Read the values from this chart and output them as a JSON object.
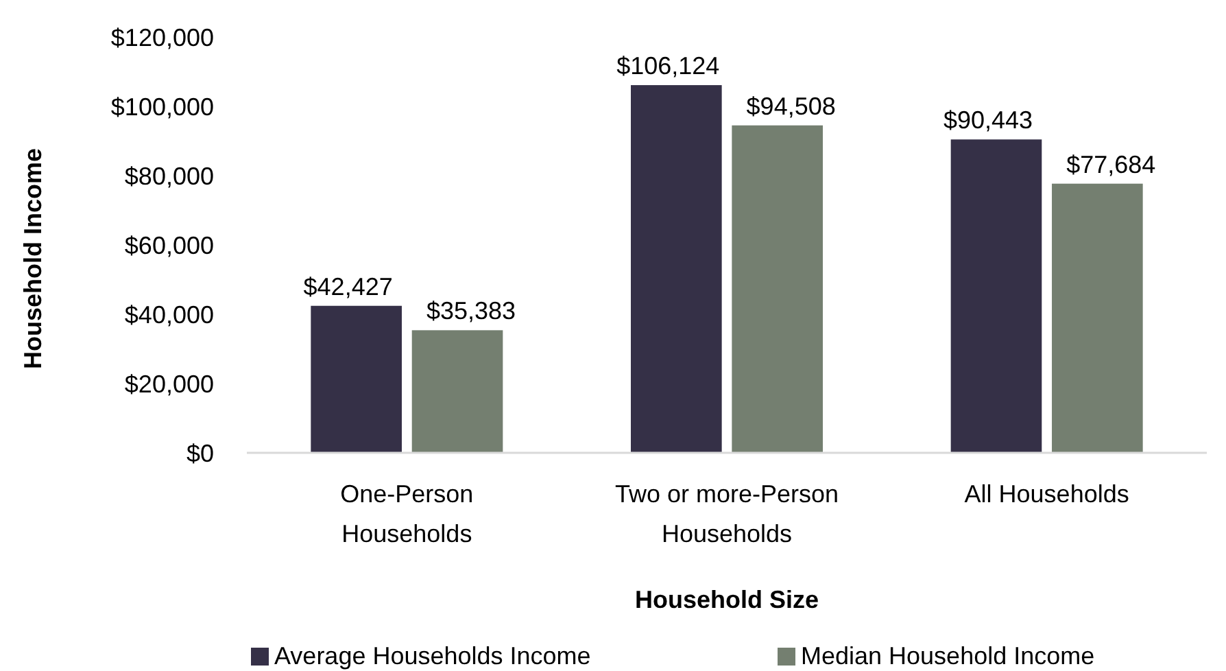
{
  "chart_data": {
    "type": "bar",
    "xlabel": "Household Size",
    "ylabel": "Household Income",
    "categories": [
      "One-Person\nHouseholds",
      "Two or more-Person\nHouseholds",
      "All Households"
    ],
    "series": [
      {
        "name": "Average Households Income",
        "color": "#353047",
        "values": [
          42427,
          106124,
          90443
        ],
        "value_labels": [
          "$42,427",
          "$106,124",
          "$90,443"
        ]
      },
      {
        "name": "Median Household Income",
        "color": "#747f70",
        "values": [
          35383,
          94508,
          77684
        ],
        "value_labels": [
          "$35,383",
          "$94,508",
          "$77,684"
        ]
      }
    ],
    "ylim": [
      0,
      120000
    ],
    "yticks": [
      {
        "value": 0,
        "label": "$0"
      },
      {
        "value": 20000,
        "label": "$20,000"
      },
      {
        "value": 40000,
        "label": "$40,000"
      },
      {
        "value": 60000,
        "label": "$60,000"
      },
      {
        "value": 80000,
        "label": "$80,000"
      },
      {
        "value": 100000,
        "label": "$100,000"
      },
      {
        "value": 120000,
        "label": "$120,000"
      }
    ],
    "grid": false,
    "legend": "bottom"
  }
}
